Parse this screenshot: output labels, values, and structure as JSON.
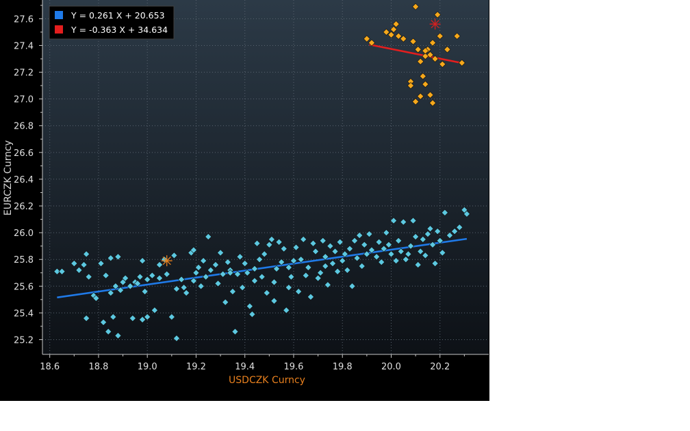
{
  "chart_data": {
    "type": "scatter",
    "xlabel": "USDCZK Curncy",
    "ylabel": "EURCZK Curncy",
    "xlim": [
      18.57,
      20.4
    ],
    "ylim": [
      25.09,
      27.74
    ],
    "x_ticks": [
      18.6,
      18.8,
      19.0,
      19.2,
      19.4,
      19.6,
      19.8,
      20.0,
      20.2
    ],
    "y_ticks": [
      25.2,
      25.4,
      25.6,
      25.8,
      26.0,
      26.2,
      26.4,
      26.6,
      26.8,
      27.0,
      27.2,
      27.4,
      27.6
    ],
    "grid": true,
    "legend_position": "top-left",
    "colors": {
      "series1_points": "#5cc8e0",
      "series1_fit": "#1f7ae8",
      "series2_points": "#f5a81c",
      "series2_fit": "#e41e1e",
      "series1_marker_latest": "#e8801e",
      "series2_marker_latest": "#d42020",
      "x_label_color": "#e8801e"
    },
    "series": [
      {
        "fit_label": "Y = 0.261 X + 20.653",
        "fit": {
          "slope": 0.261,
          "intercept": 20.653,
          "x_range": [
            18.63,
            20.31
          ]
        },
        "latest_point": [
          19.08,
          25.79
        ],
        "points": [
          [
            18.63,
            25.71
          ],
          [
            18.65,
            25.71
          ],
          [
            18.7,
            25.77
          ],
          [
            18.72,
            25.72
          ],
          [
            18.74,
            25.76
          ],
          [
            18.75,
            25.84
          ],
          [
            18.75,
            25.36
          ],
          [
            18.76,
            25.67
          ],
          [
            18.78,
            25.53
          ],
          [
            18.79,
            25.51
          ],
          [
            18.81,
            25.77
          ],
          [
            18.82,
            25.33
          ],
          [
            18.83,
            25.68
          ],
          [
            18.84,
            25.26
          ],
          [
            18.85,
            25.55
          ],
          [
            18.85,
            25.81
          ],
          [
            18.86,
            25.37
          ],
          [
            18.87,
            25.6
          ],
          [
            18.88,
            25.82
          ],
          [
            18.88,
            25.23
          ],
          [
            18.89,
            25.57
          ],
          [
            18.9,
            25.63
          ],
          [
            18.91,
            25.66
          ],
          [
            18.93,
            25.6
          ],
          [
            18.94,
            25.36
          ],
          [
            18.95,
            25.63
          ],
          [
            18.96,
            25.62
          ],
          [
            18.97,
            25.67
          ],
          [
            18.98,
            25.35
          ],
          [
            18.98,
            25.79
          ],
          [
            18.99,
            25.56
          ],
          [
            19.0,
            25.65
          ],
          [
            19.0,
            25.37
          ],
          [
            19.02,
            25.68
          ],
          [
            19.03,
            25.42
          ],
          [
            19.05,
            25.76
          ],
          [
            19.07,
            25.8
          ],
          [
            19.08,
            25.69
          ],
          [
            19.1,
            25.37
          ],
          [
            19.11,
            25.83
          ],
          [
            19.12,
            25.58
          ],
          [
            19.12,
            25.21
          ],
          [
            19.14,
            25.65
          ],
          [
            19.15,
            25.59
          ],
          [
            19.16,
            25.55
          ],
          [
            19.18,
            25.85
          ],
          [
            19.19,
            25.87
          ],
          [
            19.2,
            25.7
          ],
          [
            19.21,
            25.74
          ],
          [
            19.22,
            25.6
          ],
          [
            19.23,
            25.79
          ],
          [
            19.24,
            25.67
          ],
          [
            19.25,
            25.97
          ],
          [
            19.26,
            25.72
          ],
          [
            19.28,
            25.76
          ],
          [
            19.29,
            25.62
          ],
          [
            19.3,
            25.85
          ],
          [
            19.31,
            25.69
          ],
          [
            19.32,
            25.48
          ],
          [
            19.33,
            25.78
          ],
          [
            19.34,
            25.72
          ],
          [
            19.35,
            25.56
          ],
          [
            19.36,
            25.26
          ],
          [
            19.37,
            25.69
          ],
          [
            19.38,
            25.82
          ],
          [
            19.39,
            25.59
          ],
          [
            19.4,
            25.77
          ],
          [
            19.41,
            25.7
          ],
          [
            19.42,
            25.45
          ],
          [
            19.43,
            25.39
          ],
          [
            19.44,
            25.73
          ],
          [
            19.45,
            25.92
          ],
          [
            19.46,
            25.8
          ],
          [
            19.47,
            25.67
          ],
          [
            19.48,
            25.84
          ],
          [
            19.49,
            25.55
          ],
          [
            19.5,
            25.91
          ],
          [
            19.51,
            25.95
          ],
          [
            19.52,
            25.63
          ],
          [
            19.52,
            25.49
          ],
          [
            19.53,
            25.73
          ],
          [
            19.54,
            25.93
          ],
          [
            19.55,
            25.78
          ],
          [
            19.56,
            25.88
          ],
          [
            19.57,
            25.42
          ],
          [
            19.58,
            25.59
          ],
          [
            19.59,
            25.67
          ],
          [
            19.6,
            25.79
          ],
          [
            19.61,
            25.89
          ],
          [
            19.62,
            25.56
          ],
          [
            19.63,
            25.8
          ],
          [
            19.64,
            25.95
          ],
          [
            19.65,
            25.68
          ],
          [
            19.66,
            25.74
          ],
          [
            19.67,
            25.52
          ],
          [
            19.68,
            25.92
          ],
          [
            19.69,
            25.86
          ],
          [
            19.7,
            25.66
          ],
          [
            19.71,
            25.7
          ],
          [
            19.72,
            25.94
          ],
          [
            19.73,
            25.82
          ],
          [
            19.74,
            25.61
          ],
          [
            19.75,
            25.9
          ],
          [
            19.76,
            25.77
          ],
          [
            19.77,
            25.86
          ],
          [
            19.78,
            25.71
          ],
          [
            19.79,
            25.93
          ],
          [
            19.8,
            25.79
          ],
          [
            19.81,
            25.84
          ],
          [
            19.82,
            25.72
          ],
          [
            19.83,
            25.88
          ],
          [
            19.84,
            25.6
          ],
          [
            19.85,
            25.94
          ],
          [
            19.86,
            25.81
          ],
          [
            19.87,
            25.98
          ],
          [
            19.88,
            25.75
          ],
          [
            19.89,
            25.91
          ],
          [
            19.9,
            25.84
          ],
          [
            19.91,
            25.99
          ],
          [
            19.92,
            25.87
          ],
          [
            19.94,
            25.82
          ],
          [
            19.95,
            25.93
          ],
          [
            19.96,
            25.78
          ],
          [
            19.97,
            25.88
          ],
          [
            19.98,
            26.0
          ],
          [
            19.99,
            25.91
          ],
          [
            20.0,
            25.84
          ],
          [
            20.01,
            26.09
          ],
          [
            20.02,
            25.79
          ],
          [
            20.03,
            25.94
          ],
          [
            20.04,
            25.86
          ],
          [
            20.05,
            26.08
          ],
          [
            20.06,
            25.8
          ],
          [
            20.07,
            25.84
          ],
          [
            20.08,
            25.9
          ],
          [
            20.09,
            26.09
          ],
          [
            20.1,
            25.97
          ],
          [
            20.11,
            25.76
          ],
          [
            20.12,
            25.86
          ],
          [
            20.13,
            25.95
          ],
          [
            20.14,
            25.83
          ],
          [
            20.15,
            25.99
          ],
          [
            20.16,
            26.03
          ],
          [
            20.17,
            25.91
          ],
          [
            20.18,
            25.77
          ],
          [
            20.19,
            26.01
          ],
          [
            20.2,
            25.94
          ],
          [
            20.21,
            25.85
          ],
          [
            20.22,
            26.15
          ],
          [
            20.24,
            25.98
          ],
          [
            20.26,
            26.01
          ],
          [
            20.28,
            26.04
          ],
          [
            20.3,
            26.17
          ],
          [
            20.31,
            26.14
          ],
          [
            19.19,
            25.64
          ],
          [
            19.44,
            25.64
          ],
          [
            19.73,
            25.75
          ],
          [
            19.34,
            25.7
          ],
          [
            19.58,
            25.74
          ],
          [
            19.05,
            25.66
          ]
        ]
      },
      {
        "fit_label": "Y = -0.363 X + 34.634",
        "fit": {
          "slope": -0.363,
          "intercept": 34.634,
          "x_range": [
            19.91,
            20.29
          ]
        },
        "latest_point": [
          20.18,
          27.56
        ],
        "points": [
          [
            19.9,
            27.45
          ],
          [
            19.92,
            27.42
          ],
          [
            19.98,
            27.5
          ],
          [
            20.0,
            27.48
          ],
          [
            20.01,
            27.52
          ],
          [
            20.02,
            27.56
          ],
          [
            20.03,
            27.47
          ],
          [
            20.05,
            27.45
          ],
          [
            20.08,
            27.13
          ],
          [
            20.08,
            27.1
          ],
          [
            20.09,
            27.43
          ],
          [
            20.1,
            26.98
          ],
          [
            20.1,
            27.69
          ],
          [
            20.11,
            27.37
          ],
          [
            20.12,
            27.02
          ],
          [
            20.12,
            27.28
          ],
          [
            20.13,
            27.17
          ],
          [
            20.14,
            27.32
          ],
          [
            20.14,
            27.11
          ],
          [
            20.15,
            27.37
          ],
          [
            20.16,
            27.03
          ],
          [
            20.17,
            27.42
          ],
          [
            20.17,
            26.97
          ],
          [
            20.18,
            27.3
          ],
          [
            20.19,
            27.63
          ],
          [
            20.2,
            27.47
          ],
          [
            20.21,
            27.26
          ],
          [
            20.23,
            27.37
          ],
          [
            20.27,
            27.47
          ],
          [
            20.29,
            27.27
          ],
          [
            20.14,
            27.36
          ],
          [
            20.16,
            27.33
          ]
        ]
      }
    ]
  }
}
